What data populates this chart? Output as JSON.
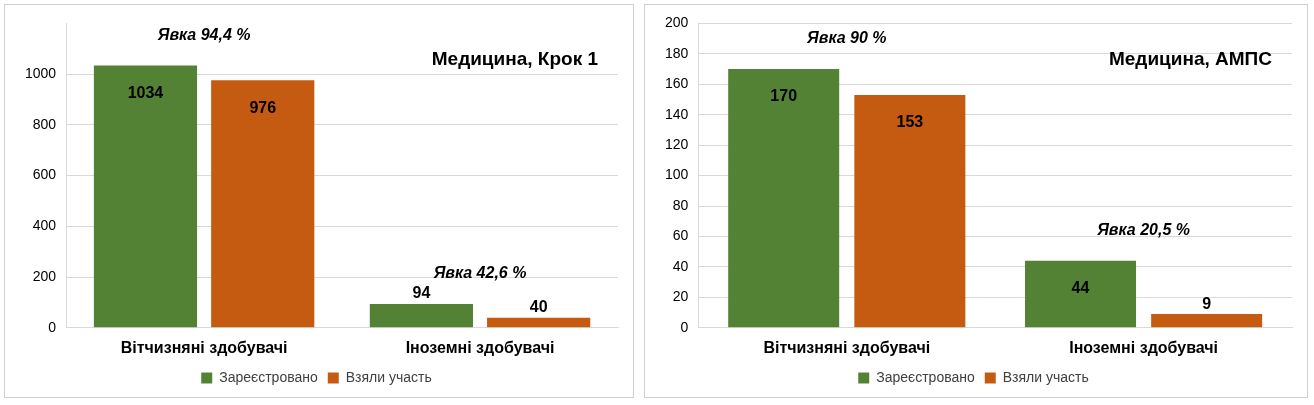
{
  "chart_data": [
    {
      "type": "bar",
      "title": "Медицина, Крок 1",
      "categories": [
        "Вітчизняні здобувачі",
        "Іноземні здобувачі"
      ],
      "series": [
        {
          "name": "Зареєстровано",
          "color": "#548235",
          "values": [
            1034,
            94
          ]
        },
        {
          "name": "Взяли участь",
          "color": "#c55a11",
          "values": [
            976,
            40
          ]
        }
      ],
      "ylim": [
        0,
        1200
      ],
      "yticks": [
        0,
        200,
        400,
        600,
        800,
        1000
      ],
      "grid": "y",
      "legend": "bottom",
      "data_labels": true,
      "annotations": [
        "Явка 94,4 %",
        "Явка 42,6 %"
      ]
    },
    {
      "type": "bar",
      "title": "Медицина, АМПС",
      "categories": [
        "Вітчизняні здобувачі",
        "Іноземні здобувачі"
      ],
      "series": [
        {
          "name": "Зареєстровано",
          "color": "#548235",
          "values": [
            170,
            44
          ]
        },
        {
          "name": "Взяли участь",
          "color": "#c55a11",
          "values": [
            153,
            9
          ]
        }
      ],
      "ylim": [
        0,
        200
      ],
      "yticks": [
        0,
        20,
        40,
        60,
        80,
        100,
        120,
        140,
        160,
        180,
        200
      ],
      "grid": "y",
      "legend": "bottom",
      "data_labels": true,
      "annotations": [
        "Явка 90 %",
        "Явка 20,5 %"
      ]
    }
  ]
}
